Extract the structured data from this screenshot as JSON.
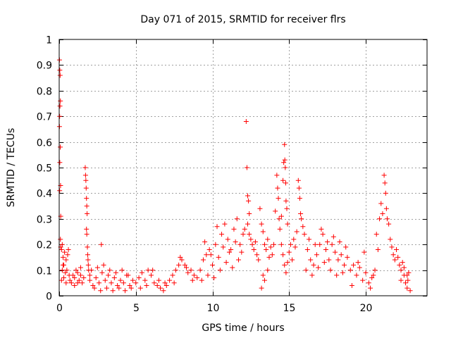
{
  "chart_data": {
    "type": "scatter",
    "title": "Day 071 of 2015, SRMTID for receiver flrs",
    "xlabel": "GPS time / hours",
    "ylabel": "SRMTID / TECUs",
    "xlim": [
      0,
      24
    ],
    "ylim": [
      0,
      1
    ],
    "xticks": [
      0,
      5,
      10,
      15,
      20
    ],
    "xtick_labels": [
      "0",
      "5",
      "10",
      "15",
      "20"
    ],
    "yticks": [
      0,
      0.1,
      0.2,
      0.3,
      0.4,
      0.5,
      0.6,
      0.7,
      0.8,
      0.9,
      1
    ],
    "ytick_labels": [
      "0",
      "0.1",
      "0.2",
      "0.3",
      "0.4",
      "0.5",
      "0.6",
      "0.7",
      "0.8",
      "0.9",
      "1"
    ],
    "grid": true,
    "marker": "+",
    "color": "#ff0000",
    "series": [
      {
        "name": "SRMTID",
        "points": [
          [
            0.02,
            0.92
          ],
          [
            0.04,
            0.88
          ],
          [
            0.06,
            0.86
          ],
          [
            0.08,
            0.76
          ],
          [
            0.05,
            0.74
          ],
          [
            0.03,
            0.7
          ],
          [
            0.02,
            0.66
          ],
          [
            0.07,
            0.58
          ],
          [
            0.04,
            0.52
          ],
          [
            0.09,
            0.43
          ],
          [
            0.03,
            0.41
          ],
          [
            0.1,
            0.31
          ],
          [
            0.08,
            0.22
          ],
          [
            0.1,
            0.19
          ],
          [
            0.15,
            0.18
          ],
          [
            0.2,
            0.2
          ],
          [
            0.25,
            0.15
          ],
          [
            0.3,
            0.12
          ],
          [
            0.35,
            0.17
          ],
          [
            0.4,
            0.09
          ],
          [
            0.45,
            0.14
          ],
          [
            0.5,
            0.1
          ],
          [
            0.55,
            0.16
          ],
          [
            0.6,
            0.18
          ],
          [
            0.65,
            0.08
          ],
          [
            0.2,
            0.1
          ],
          [
            0.3,
            0.07
          ],
          [
            0.15,
            0.06
          ],
          [
            0.25,
            0.12
          ],
          [
            0.45,
            0.05
          ],
          [
            0.7,
            0.06
          ],
          [
            0.8,
            0.05
          ],
          [
            0.9,
            0.08
          ],
          [
            1.0,
            0.07
          ],
          [
            1.1,
            0.1
          ],
          [
            1.2,
            0.09
          ],
          [
            1.3,
            0.06
          ],
          [
            1.4,
            0.08
          ],
          [
            1.5,
            0.05
          ],
          [
            1.6,
            0.07
          ],
          [
            1.0,
            0.04
          ],
          [
            1.2,
            0.05
          ],
          [
            1.4,
            0.11
          ],
          [
            1.7,
            0.5
          ],
          [
            1.72,
            0.47
          ],
          [
            1.74,
            0.45
          ],
          [
            1.76,
            0.42
          ],
          [
            1.78,
            0.38
          ],
          [
            1.8,
            0.35
          ],
          [
            1.82,
            0.32
          ],
          [
            1.78,
            0.26
          ],
          [
            1.8,
            0.24
          ],
          [
            1.84,
            0.19
          ],
          [
            1.86,
            0.16
          ],
          [
            1.88,
            0.14
          ],
          [
            1.9,
            0.12
          ],
          [
            1.92,
            0.1
          ],
          [
            2.0,
            0.08
          ],
          [
            2.0,
            0.06
          ],
          [
            2.2,
            0.04
          ],
          [
            2.4,
            0.07
          ],
          [
            2.6,
            0.05
          ],
          [
            2.8,
            0.09
          ],
          [
            3.0,
            0.06
          ],
          [
            3.2,
            0.08
          ],
          [
            3.4,
            0.05
          ],
          [
            3.6,
            0.07
          ],
          [
            3.8,
            0.04
          ],
          [
            4.0,
            0.06
          ],
          [
            4.2,
            0.05
          ],
          [
            4.4,
            0.08
          ],
          [
            4.6,
            0.04
          ],
          [
            4.8,
            0.06
          ],
          [
            2.75,
            0.2
          ],
          [
            2.1,
            0.1
          ],
          [
            2.5,
            0.11
          ],
          [
            2.9,
            0.12
          ],
          [
            3.3,
            0.1
          ],
          [
            3.7,
            0.09
          ],
          [
            4.1,
            0.1
          ],
          [
            4.5,
            0.08
          ],
          [
            2.3,
            0.03
          ],
          [
            2.7,
            0.02
          ],
          [
            3.1,
            0.03
          ],
          [
            3.5,
            0.02
          ],
          [
            3.9,
            0.03
          ],
          [
            4.3,
            0.02
          ],
          [
            4.7,
            0.03
          ],
          [
            5.0,
            0.05
          ],
          [
            5.2,
            0.07
          ],
          [
            5.4,
            0.09
          ],
          [
            5.6,
            0.06
          ],
          [
            5.8,
            0.1
          ],
          [
            6.0,
            0.08
          ],
          [
            6.2,
            0.05
          ],
          [
            6.4,
            0.04
          ],
          [
            6.6,
            0.03
          ],
          [
            6.8,
            0.02
          ],
          [
            7.0,
            0.04
          ],
          [
            5.3,
            0.03
          ],
          [
            5.7,
            0.04
          ],
          [
            6.1,
            0.1
          ],
          [
            6.5,
            0.06
          ],
          [
            6.9,
            0.05
          ],
          [
            7.2,
            0.06
          ],
          [
            7.4,
            0.08
          ],
          [
            7.6,
            0.1
          ],
          [
            7.8,
            0.12
          ],
          [
            8.0,
            0.14
          ],
          [
            8.2,
            0.12
          ],
          [
            8.4,
            0.09
          ],
          [
            8.6,
            0.1
          ],
          [
            8.8,
            0.08
          ],
          [
            9.0,
            0.07
          ],
          [
            7.5,
            0.05
          ],
          [
            7.9,
            0.15
          ],
          [
            8.3,
            0.11
          ],
          [
            8.7,
            0.06
          ],
          [
            9.2,
            0.1
          ],
          [
            9.4,
            0.14
          ],
          [
            9.6,
            0.16
          ],
          [
            9.8,
            0.18
          ],
          [
            10.0,
            0.12
          ],
          [
            10.2,
            0.2
          ],
          [
            10.4,
            0.15
          ],
          [
            10.6,
            0.24
          ],
          [
            10.8,
            0.28
          ],
          [
            11.0,
            0.22
          ],
          [
            11.2,
            0.18
          ],
          [
            11.4,
            0.26
          ],
          [
            11.6,
            0.3
          ],
          [
            11.8,
            0.2
          ],
          [
            12.0,
            0.24
          ],
          [
            9.3,
            0.06
          ],
          [
            9.7,
            0.08
          ],
          [
            10.1,
            0.07
          ],
          [
            10.5,
            0.1
          ],
          [
            10.9,
            0.13
          ],
          [
            11.3,
            0.11
          ],
          [
            11.7,
            0.14
          ],
          [
            9.5,
            0.21
          ],
          [
            9.9,
            0.16
          ],
          [
            10.3,
            0.27
          ],
          [
            10.7,
            0.19
          ],
          [
            11.1,
            0.17
          ],
          [
            11.5,
            0.21
          ],
          [
            11.9,
            0.17
          ],
          [
            12.2,
            0.68
          ],
          [
            12.25,
            0.5
          ],
          [
            12.3,
            0.39
          ],
          [
            12.35,
            0.37
          ],
          [
            12.4,
            0.32
          ],
          [
            12.3,
            0.28
          ],
          [
            12.1,
            0.26
          ],
          [
            12.4,
            0.24
          ],
          [
            12.5,
            0.22
          ],
          [
            12.6,
            0.2
          ],
          [
            12.7,
            0.18
          ],
          [
            12.8,
            0.21
          ],
          [
            12.9,
            0.16
          ],
          [
            13.0,
            0.14
          ],
          [
            13.1,
            0.34
          ],
          [
            13.2,
            0.28
          ],
          [
            13.3,
            0.25
          ],
          [
            13.4,
            0.2
          ],
          [
            13.5,
            0.18
          ],
          [
            13.6,
            0.22
          ],
          [
            13.7,
            0.15
          ],
          [
            13.8,
            0.19
          ],
          [
            13.9,
            0.16
          ],
          [
            14.0,
            0.2
          ],
          [
            13.2,
            0.03
          ],
          [
            13.4,
            0.06
          ],
          [
            13.6,
            0.1
          ],
          [
            13.3,
            0.08
          ],
          [
            14.1,
            0.33
          ],
          [
            14.2,
            0.47
          ],
          [
            14.25,
            0.42
          ],
          [
            14.3,
            0.38
          ],
          [
            14.35,
            0.3
          ],
          [
            14.4,
            0.26
          ],
          [
            14.5,
            0.31
          ],
          [
            14.6,
            0.45
          ],
          [
            14.65,
            0.52
          ],
          [
            14.7,
            0.59
          ],
          [
            14.72,
            0.53
          ],
          [
            14.75,
            0.5
          ],
          [
            14.78,
            0.44
          ],
          [
            14.8,
            0.37
          ],
          [
            14.85,
            0.34
          ],
          [
            14.9,
            0.28
          ],
          [
            14.5,
            0.2
          ],
          [
            14.6,
            0.16
          ],
          [
            14.7,
            0.12
          ],
          [
            14.8,
            0.09
          ],
          [
            14.9,
            0.13
          ],
          [
            15.0,
            0.17
          ],
          [
            15.1,
            0.2
          ],
          [
            15.2,
            0.14
          ],
          [
            15.3,
            0.22
          ],
          [
            15.4,
            0.19
          ],
          [
            15.5,
            0.25
          ],
          [
            15.6,
            0.45
          ],
          [
            15.65,
            0.42
          ],
          [
            15.7,
            0.38
          ],
          [
            15.75,
            0.32
          ],
          [
            15.8,
            0.3
          ],
          [
            15.9,
            0.27
          ],
          [
            16.0,
            0.24
          ],
          [
            16.2,
            0.18
          ],
          [
            16.4,
            0.14
          ],
          [
            16.6,
            0.12
          ],
          [
            16.8,
            0.16
          ],
          [
            17.0,
            0.2
          ],
          [
            17.2,
            0.24
          ],
          [
            17.4,
            0.18
          ],
          [
            17.6,
            0.14
          ],
          [
            17.8,
            0.2
          ],
          [
            18.0,
            0.17
          ],
          [
            18.2,
            0.14
          ],
          [
            18.4,
            0.16
          ],
          [
            18.6,
            0.12
          ],
          [
            18.8,
            0.15
          ],
          [
            16.1,
            0.1
          ],
          [
            16.5,
            0.08
          ],
          [
            16.9,
            0.11
          ],
          [
            17.3,
            0.13
          ],
          [
            17.7,
            0.1
          ],
          [
            18.1,
            0.08
          ],
          [
            18.5,
            0.09
          ],
          [
            16.3,
            0.22
          ],
          [
            16.7,
            0.2
          ],
          [
            17.1,
            0.26
          ],
          [
            17.5,
            0.21
          ],
          [
            17.9,
            0.23
          ],
          [
            18.3,
            0.21
          ],
          [
            18.7,
            0.19
          ],
          [
            19.0,
            0.1
          ],
          [
            19.2,
            0.12
          ],
          [
            19.4,
            0.08
          ],
          [
            19.6,
            0.11
          ],
          [
            19.8,
            0.06
          ],
          [
            20.0,
            0.09
          ],
          [
            20.2,
            0.05
          ],
          [
            20.4,
            0.07
          ],
          [
            20.6,
            0.1
          ],
          [
            19.1,
            0.04
          ],
          [
            19.5,
            0.13
          ],
          [
            19.9,
            0.17
          ],
          [
            20.3,
            0.03
          ],
          [
            20.5,
            0.08
          ],
          [
            20.7,
            0.24
          ],
          [
            20.8,
            0.18
          ],
          [
            20.9,
            0.3
          ],
          [
            21.0,
            0.36
          ],
          [
            21.1,
            0.32
          ],
          [
            21.2,
            0.47
          ],
          [
            21.25,
            0.44
          ],
          [
            21.3,
            0.4
          ],
          [
            21.35,
            0.34
          ],
          [
            21.4,
            0.3
          ],
          [
            21.5,
            0.28
          ],
          [
            21.6,
            0.22
          ],
          [
            21.7,
            0.19
          ],
          [
            21.8,
            0.16
          ],
          [
            21.9,
            0.14
          ],
          [
            22.0,
            0.18
          ],
          [
            22.1,
            0.15
          ],
          [
            22.2,
            0.12
          ],
          [
            22.3,
            0.1
          ],
          [
            22.4,
            0.13
          ],
          [
            22.5,
            0.08
          ],
          [
            22.6,
            0.05
          ],
          [
            22.7,
            0.03
          ],
          [
            22.75,
            0.06
          ],
          [
            22.8,
            0.09
          ],
          [
            22.5,
            0.11
          ],
          [
            22.3,
            0.06
          ],
          [
            22.7,
            0.08
          ],
          [
            22.9,
            0.02
          ]
        ]
      }
    ]
  }
}
